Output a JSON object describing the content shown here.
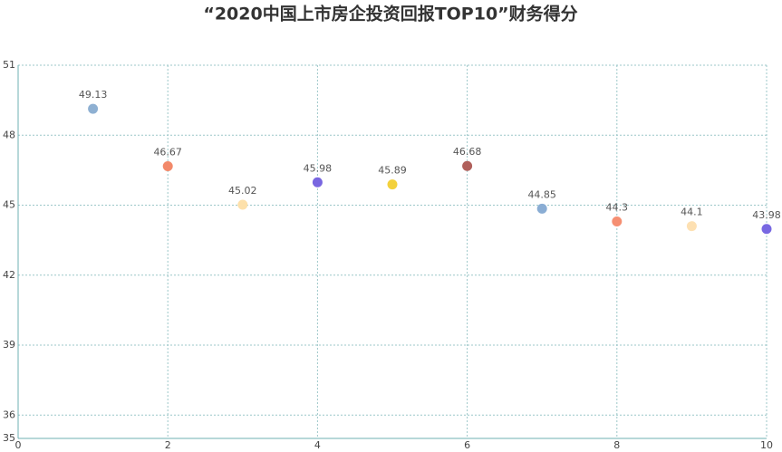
{
  "chart_data": {
    "type": "scatter",
    "title": "“2020中国上市房企投资回报TOP10”财务得分",
    "x": [
      1,
      2,
      3,
      4,
      5,
      6,
      7,
      8,
      9,
      10
    ],
    "values": [
      49.13,
      46.67,
      45.02,
      45.98,
      45.89,
      46.68,
      44.85,
      44.3,
      44.1,
      43.98
    ],
    "colors": [
      "#8eb0d2",
      "#f2896a",
      "#fde0aa",
      "#7866e0",
      "#f3d13c",
      "#b0605b",
      "#8aadd4",
      "#f58f72",
      "#fde0b2",
      "#7868e2"
    ],
    "xlim": [
      0,
      10
    ],
    "xticks": [
      0,
      2,
      4,
      6,
      8,
      10
    ],
    "ylim": [
      35,
      51
    ],
    "yticks": [
      35,
      36,
      39,
      42,
      45,
      48,
      51
    ],
    "grid": true
  }
}
